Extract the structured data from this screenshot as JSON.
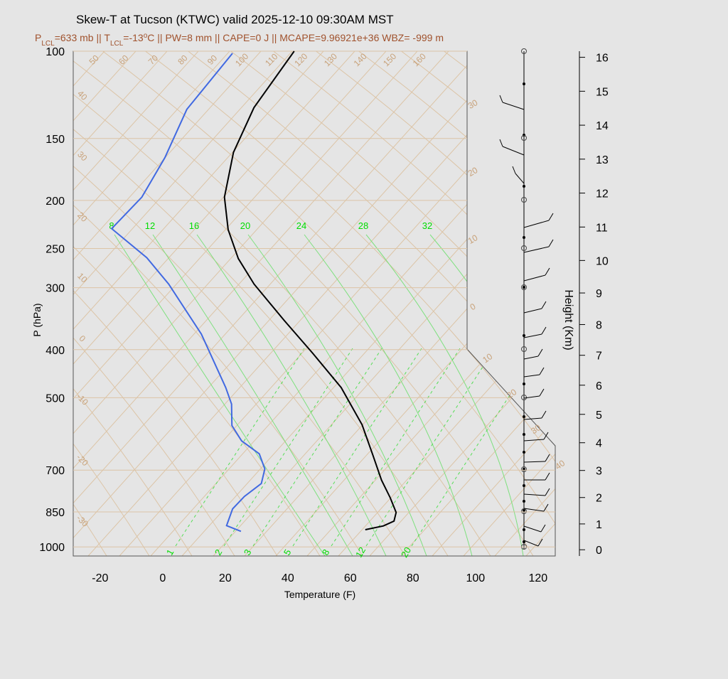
{
  "chart_data": {
    "type": "skewt",
    "title": "Skew-T at Tucson (KTWC) valid 2025-12-10 09:30AM MST",
    "subtitle": [
      {
        "text": "P"
      },
      {
        "text": "LCL",
        "style": "sub"
      },
      {
        "text": "=633 mb || T"
      },
      {
        "text": "LCL",
        "style": "sub"
      },
      {
        "text": "=-13"
      },
      {
        "text": "o",
        "style": "sup"
      },
      {
        "text": "C || PW=8 mm || CAPE=0 J || MCAPE=9.96921e+36 WBZ= -999 m"
      }
    ],
    "xlabel": "Temperature (F)",
    "ylabel": "P (hPa)",
    "y2label": "Height (Km)",
    "xlim": [
      -28.6,
      125.5
    ],
    "xticks": [
      -20,
      0,
      20,
      40,
      60,
      80,
      100,
      120
    ],
    "ylim": [
      100,
      1050
    ],
    "yticks": [
      100,
      150,
      200,
      250,
      300,
      400,
      500,
      700,
      850,
      1000
    ],
    "log_y": true,
    "y2ticks": [
      0,
      1,
      2,
      3,
      4,
      5,
      6,
      7,
      8,
      9,
      10,
      11,
      12,
      13,
      14,
      15,
      16
    ],
    "series": [
      {
        "name": "Temperature",
        "color": "#000000",
        "pressure": [
          100,
          130,
          160,
          197,
          229,
          262,
          295,
          349,
          407,
          477,
          567,
          653,
          733,
          796,
          852,
          887,
          907,
          923
        ],
        "values": [
          -103.2,
          -99.8,
          -93.5,
          -83.5,
          -73.0,
          -61.4,
          -49.0,
          -29.0,
          -10.3,
          8.6,
          26.0,
          38.2,
          48.1,
          56.0,
          62.1,
          63.9,
          61.9,
          57.2
        ]
      },
      {
        "name": "Dewpoint",
        "color": "#4169e1",
        "pressure": [
          101,
          131,
          164,
          197,
          228,
          261,
          295,
          372,
          477,
          515,
          569,
          611,
          649,
          696,
          745,
          791,
          838,
          887,
          906,
          930
        ],
        "values": [
          -122.3,
          -120.8,
          -113.9,
          -109.9,
          -110.5,
          -90.9,
          -76.3,
          -51.5,
          -28.3,
          -21.7,
          -15.4,
          -7.9,
          1.5,
          7.6,
          10.7,
          9.0,
          8.8,
          10.9,
          11.7,
          17.9
        ]
      }
    ],
    "theta_labels": [
      "50",
      "60",
      "70",
      "80",
      "90",
      "100",
      "110",
      "120",
      "130",
      "140",
      "150",
      "160"
    ],
    "isotherm_left_labels": [
      "40",
      "30",
      "20",
      "10",
      "0",
      "-10",
      "-20",
      "-30"
    ],
    "isotherm_right_labels": [
      "30",
      "20",
      "10",
      "0"
    ],
    "isotherm_lower_labels": [
      "10",
      "20",
      "30",
      "40"
    ],
    "moist_adiabat_labels": [
      "8",
      "12",
      "16",
      "20",
      "24",
      "28",
      "32"
    ],
    "mixing_ratio_labels": [
      "1",
      "2",
      "3",
      "5",
      "8",
      "12",
      "20"
    ]
  }
}
